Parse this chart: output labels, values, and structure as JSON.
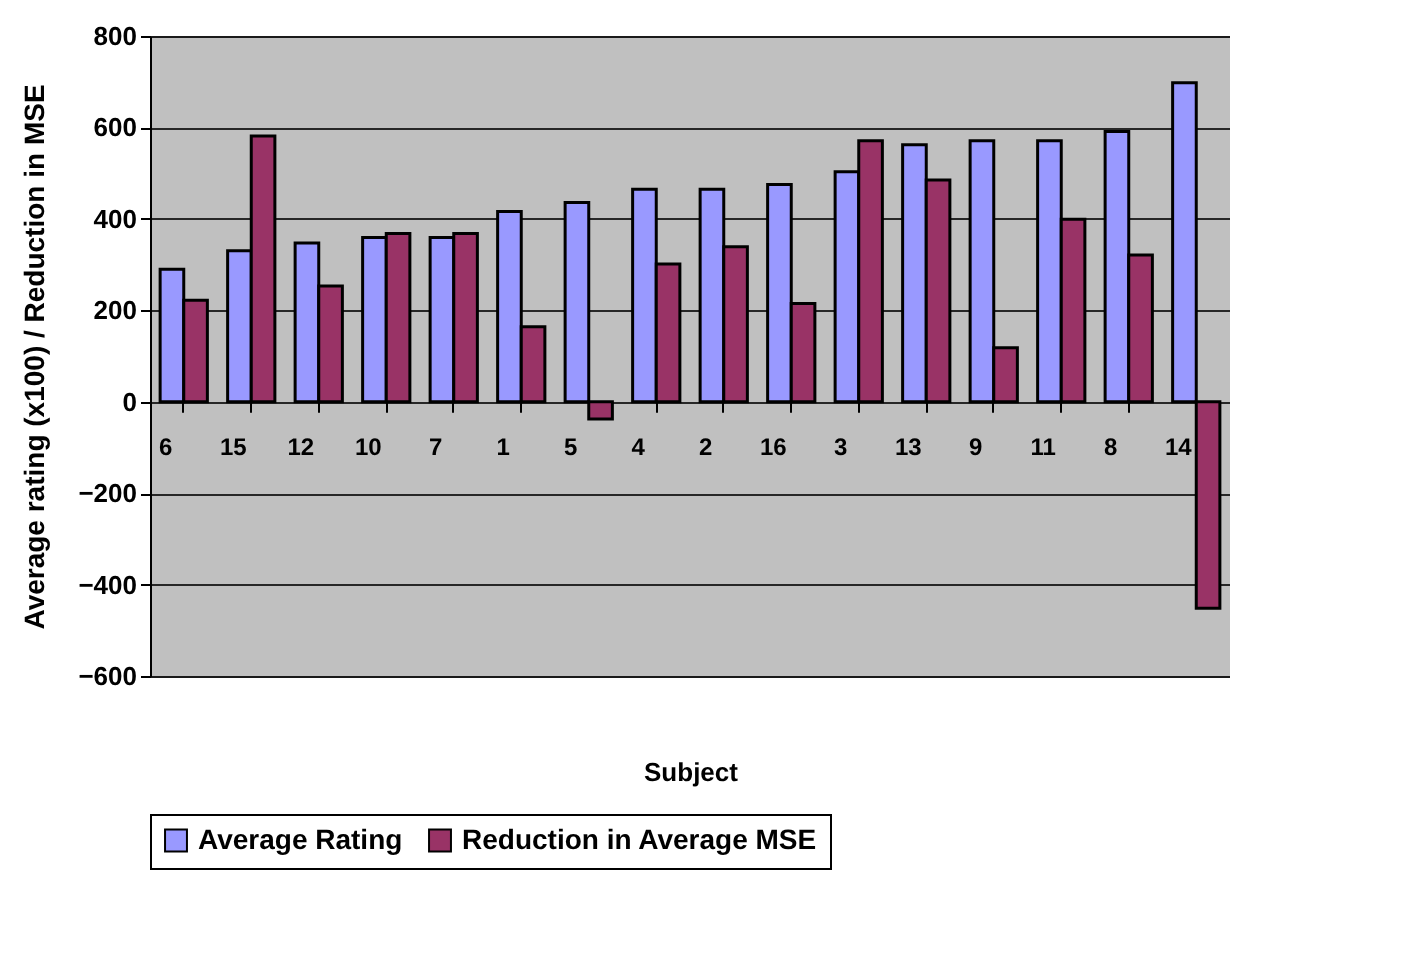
{
  "chart_data": {
    "type": "bar",
    "xlabel": "Subject",
    "ylabel": "Average rating (x100) / Reduction in MSE",
    "categories": [
      "6",
      "15",
      "12",
      "10",
      "7",
      "1",
      "5",
      "4",
      "2",
      "16",
      "3",
      "13",
      "9",
      "11",
      "8",
      "14"
    ],
    "series": [
      {
        "name": "Average Rating",
        "color": "#9999ff",
        "values": [
          290,
          330,
          347,
          359,
          359,
          416,
          436,
          465,
          465,
          475,
          503,
          562,
          571,
          571,
          591,
          698
        ]
      },
      {
        "name": "Reduction in Average MSE",
        "color": "#993366",
        "values": [
          222,
          581,
          253,
          368,
          368,
          164,
          -38,
          301,
          339,
          215,
          571,
          485,
          118,
          399,
          321,
          -452
        ]
      }
    ],
    "ylim": [
      -600,
      800
    ],
    "yticks": [
      -600,
      -400,
      -200,
      0,
      200,
      400,
      600,
      800
    ],
    "grid": "y",
    "legend": "bottom"
  }
}
